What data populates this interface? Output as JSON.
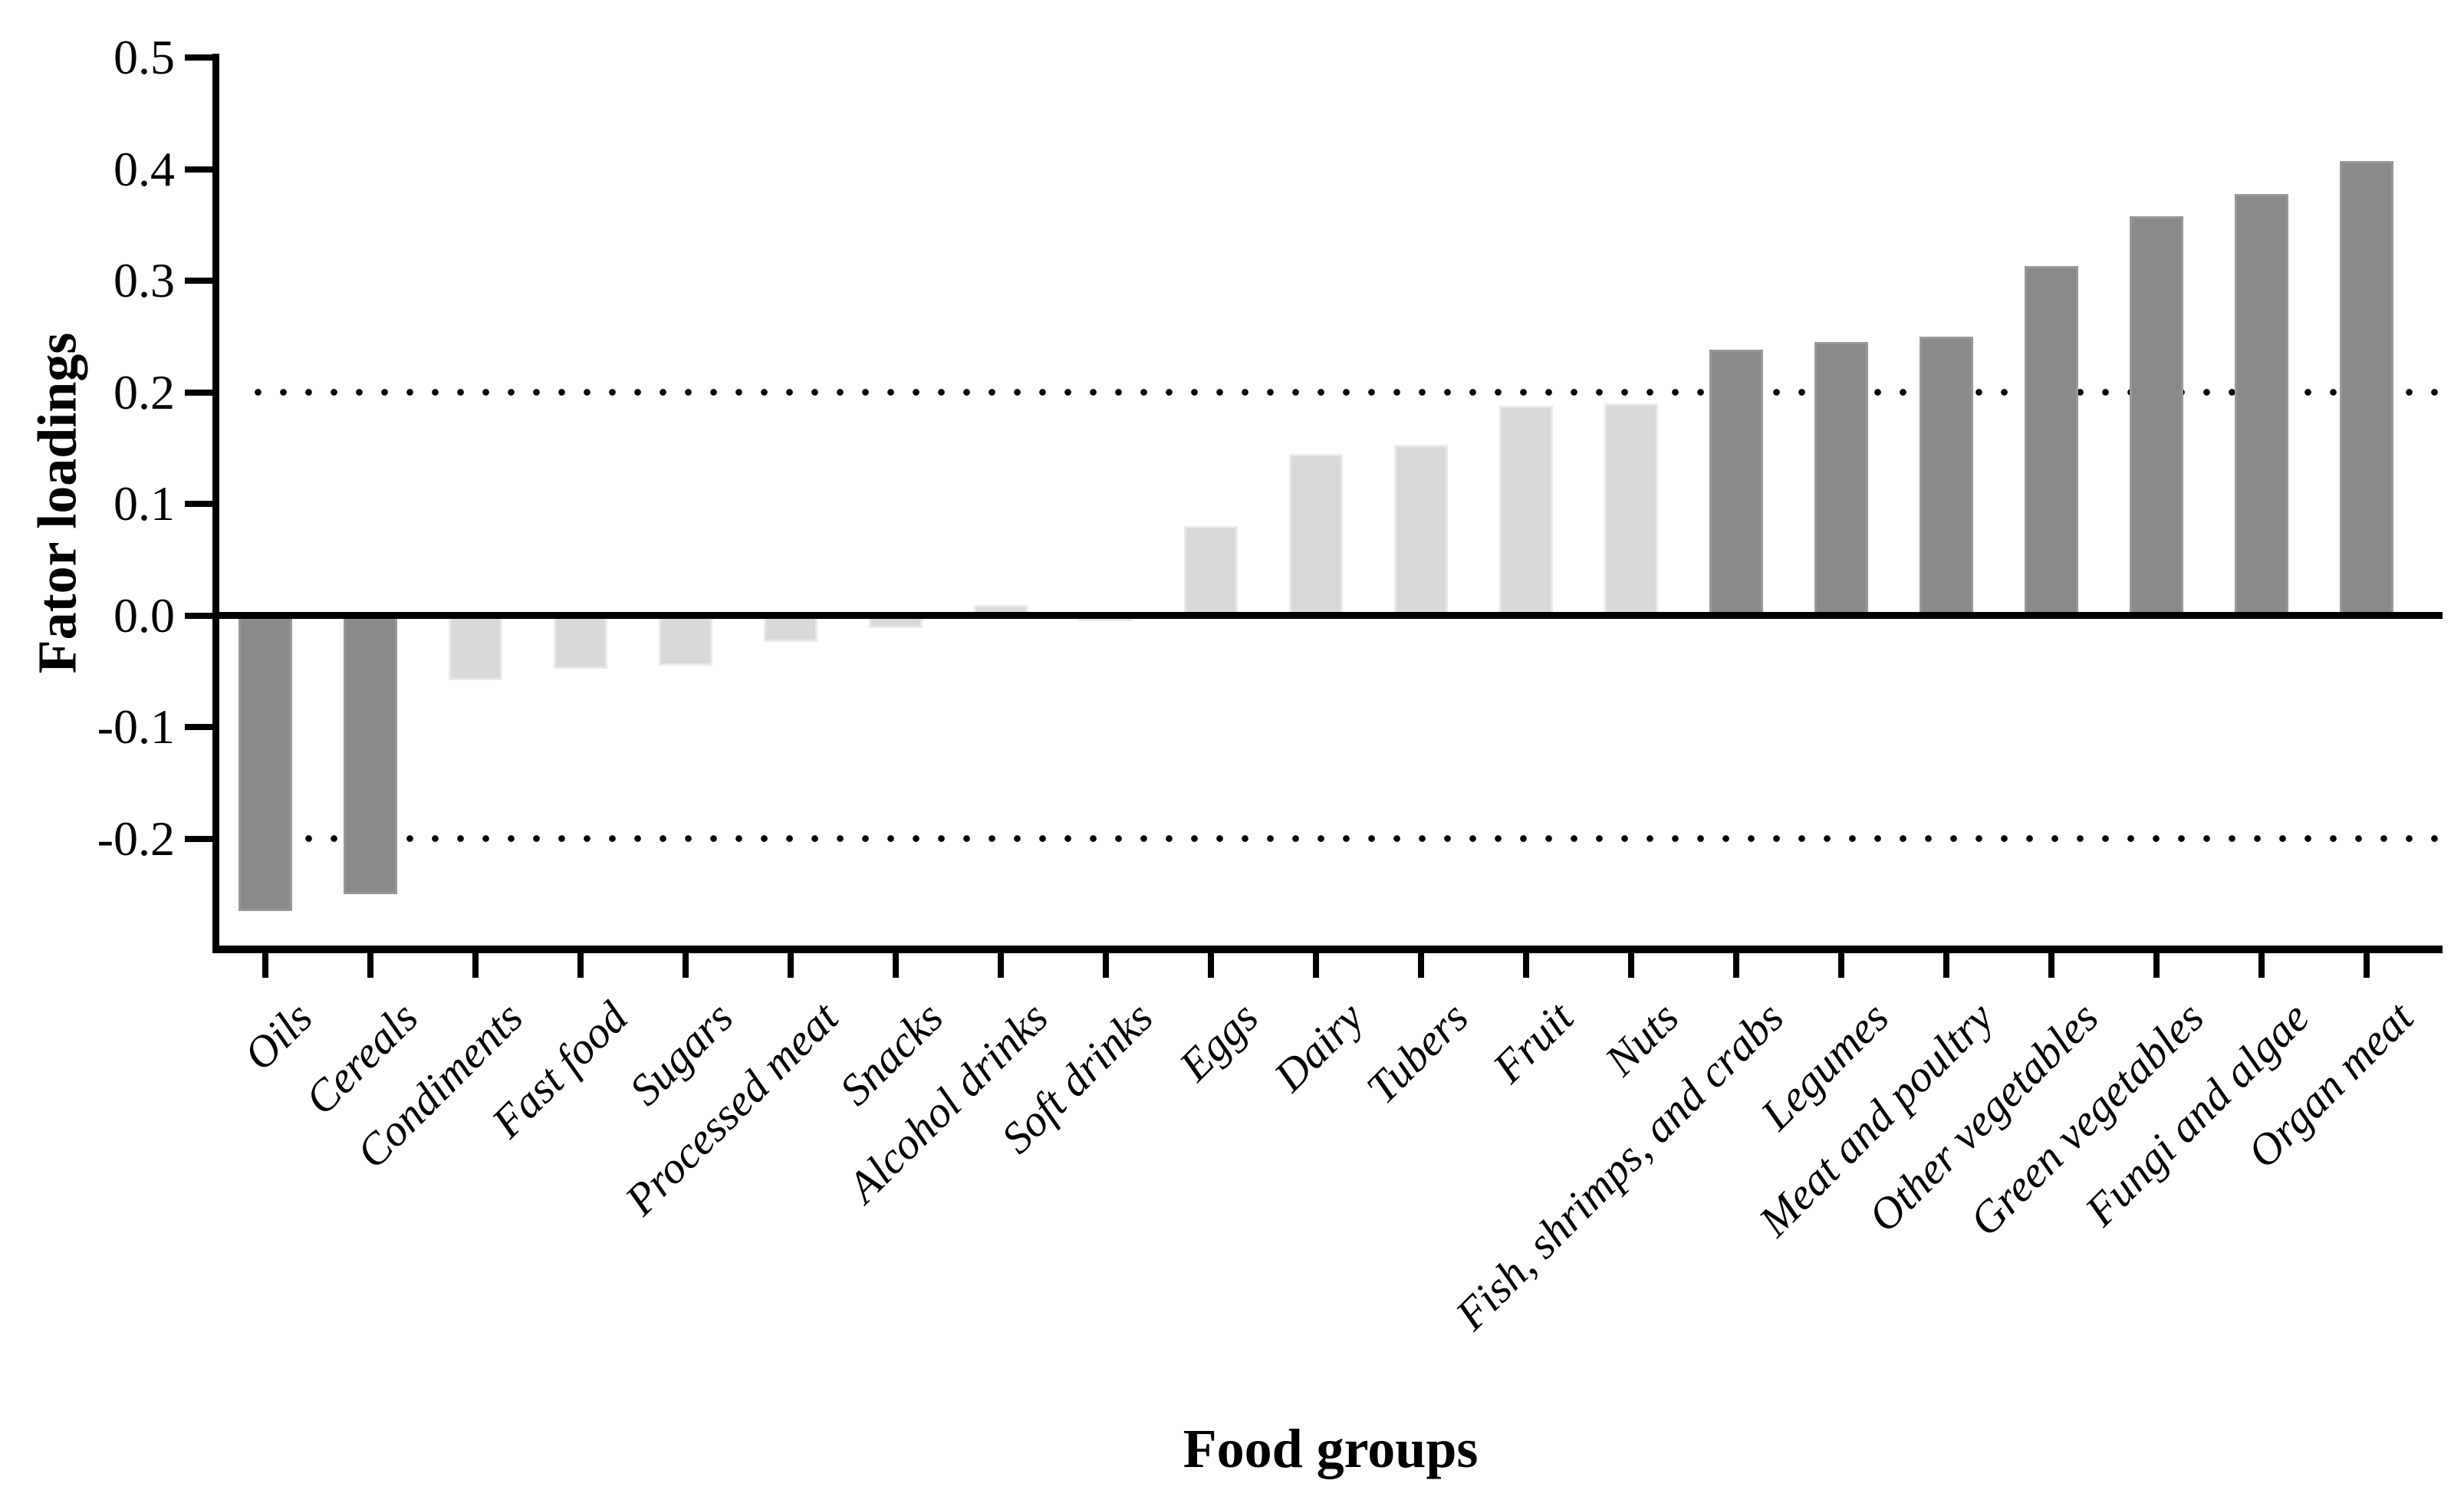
{
  "chart_data": {
    "type": "bar",
    "title": "",
    "xlabel": "Food groups",
    "ylabel": "Fator loadings",
    "ylim": [
      -0.3,
      0.5
    ],
    "yticks": [
      0.5,
      0.4,
      0.3,
      0.2,
      0.1,
      0.0,
      -0.1,
      -0.2
    ],
    "ytick_labels": [
      "0.5",
      "0.4",
      "0.3",
      "0.2",
      "0.1",
      "0.0",
      "-0.1",
      "-0.2"
    ],
    "threshold_lines": [
      0.2,
      -0.2
    ],
    "grid": false,
    "legend": "none",
    "categories": [
      "Oils",
      "Cereals",
      "Condiments",
      "Fast food",
      "Sugars",
      "Processed meat",
      "Snacks",
      "Alcohol drinks",
      "Soft drinks",
      "Eggs",
      "Dairy",
      "Tubers",
      "Fruit",
      "Nuts",
      "Fish, shrimps, and crabs",
      "Legumes",
      "Meat and poultry",
      "Other vegetables",
      "Green vegetables",
      "Fungi and algae",
      "Organ meat"
    ],
    "values": [
      -0.265,
      -0.25,
      -0.058,
      -0.048,
      -0.045,
      -0.024,
      -0.011,
      0.009,
      -0.005,
      0.08,
      0.145,
      0.153,
      0.188,
      0.19,
      0.238,
      0.245,
      0.25,
      0.313,
      0.358,
      0.378,
      0.407
    ],
    "bar_levels": [
      "dark",
      "dark",
      "light",
      "light",
      "light",
      "light",
      "light",
      "light",
      "light",
      "light",
      "light",
      "light",
      "light",
      "light",
      "dark",
      "dark",
      "dark",
      "dark",
      "dark",
      "dark",
      "dark"
    ],
    "colors": {
      "dark": "#8a8a8a",
      "light": "#d9d9d9",
      "axis": "#000000"
    }
  }
}
